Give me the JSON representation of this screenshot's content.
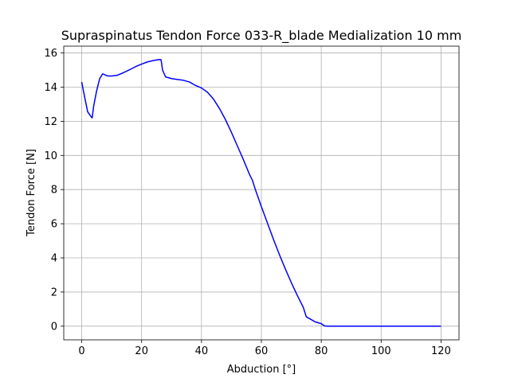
{
  "chart_data": {
    "type": "line",
    "title": "Supraspinatus Tendon Force 033-R_blade Medialization 10 mm",
    "xlabel": "Abduction [°]",
    "ylabel": "Tendon Force [N]",
    "xlim": [
      -6,
      126
    ],
    "ylim": [
      -0.8,
      16.4
    ],
    "xticks": [
      0,
      20,
      40,
      60,
      80,
      100,
      120
    ],
    "yticks": [
      0,
      2,
      4,
      6,
      8,
      10,
      12,
      14,
      16
    ],
    "grid": true,
    "line_color": "#0000ff",
    "series": [
      {
        "x": [
          0,
          1,
          2,
          3,
          3.5,
          4,
          5,
          6,
          7,
          8,
          9,
          10,
          12,
          14,
          16,
          18,
          20,
          22,
          24,
          26,
          26.5,
          27,
          28,
          30,
          32,
          34,
          36,
          38,
          40,
          42,
          44,
          46,
          48,
          50,
          52,
          54,
          56,
          57,
          58,
          60,
          62,
          64,
          66,
          68,
          70,
          72,
          74,
          75,
          76,
          77,
          78,
          80,
          81,
          82,
          84,
          90,
          100,
          110,
          120
        ],
        "y": [
          14.3,
          13.4,
          12.55,
          12.3,
          12.2,
          12.9,
          13.8,
          14.5,
          14.78,
          14.7,
          14.65,
          14.65,
          14.7,
          14.85,
          15.02,
          15.2,
          15.35,
          15.48,
          15.56,
          15.62,
          15.6,
          15.0,
          14.6,
          14.5,
          14.45,
          14.4,
          14.3,
          14.1,
          13.95,
          13.7,
          13.3,
          12.75,
          12.1,
          11.35,
          10.55,
          9.75,
          8.9,
          8.55,
          8.0,
          7.0,
          6.05,
          5.1,
          4.2,
          3.35,
          2.55,
          1.8,
          1.1,
          0.55,
          0.45,
          0.35,
          0.25,
          0.15,
          0.02,
          0,
          0,
          0,
          0,
          0,
          0
        ]
      }
    ]
  }
}
